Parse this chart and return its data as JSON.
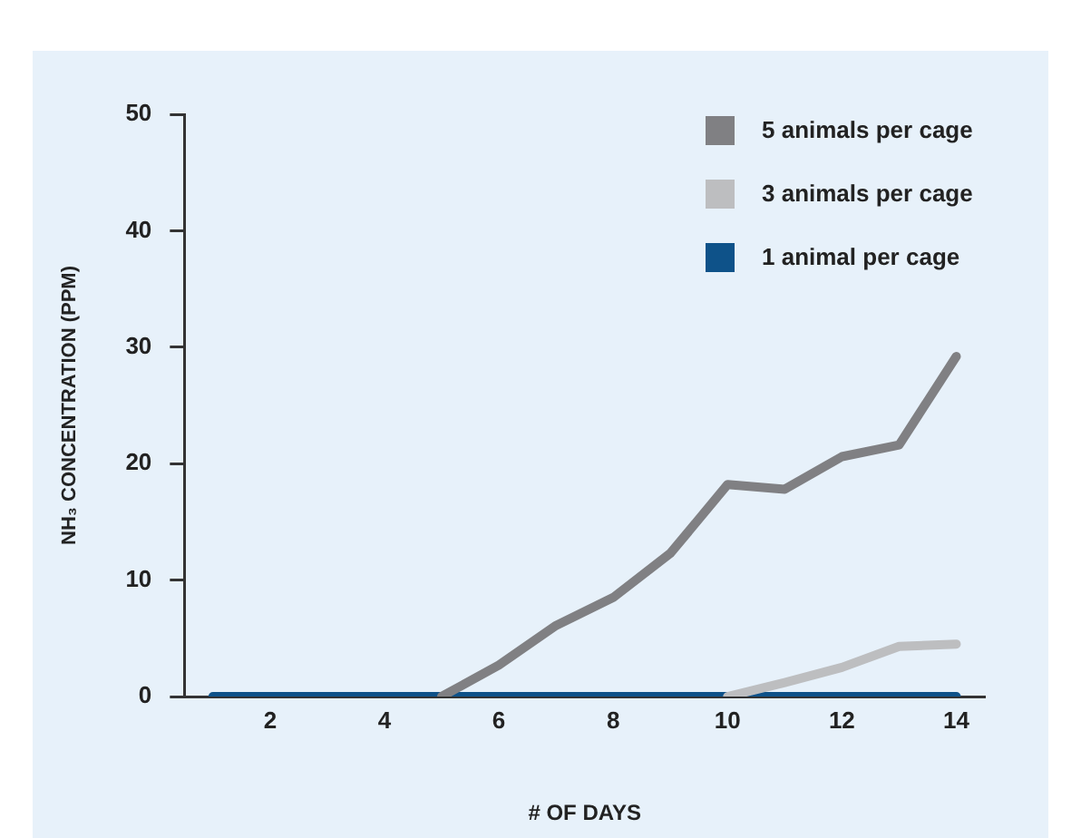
{
  "chart_data": {
    "type": "line",
    "xlabel": "# OF DAYS",
    "ylabel": "NH₃ CONCENTRATION (PPM)",
    "x": [
      1,
      2,
      3,
      4,
      5,
      6,
      7,
      8,
      9,
      10,
      11,
      12,
      13,
      14
    ],
    "xlim": [
      0.5,
      14.5
    ],
    "xticks": [
      2,
      4,
      6,
      8,
      10,
      12,
      14
    ],
    "ylim": [
      0,
      50
    ],
    "yticks": [
      0,
      10,
      20,
      30,
      40,
      50
    ],
    "grid": false,
    "legend": "top right",
    "marker": "none",
    "line_style": "solid",
    "series": [
      {
        "name": "5 animals per cage",
        "color": "#808083",
        "values": [
          null,
          null,
          null,
          null,
          0,
          2.7,
          6.1,
          8.5,
          12.3,
          18.2,
          17.8,
          20.6,
          21.6,
          29.2
        ]
      },
      {
        "name": "3 animals per cage",
        "color": "#bdbec0",
        "values": [
          null,
          null,
          null,
          null,
          null,
          null,
          null,
          null,
          null,
          0,
          1.2,
          2.5,
          4.3,
          4.5
        ]
      },
      {
        "name": "1 animal per cage",
        "color": "#0e5289",
        "values": [
          0,
          0,
          0,
          0,
          0,
          0,
          0,
          0,
          0,
          0,
          0,
          0,
          0,
          0
        ]
      }
    ]
  }
}
